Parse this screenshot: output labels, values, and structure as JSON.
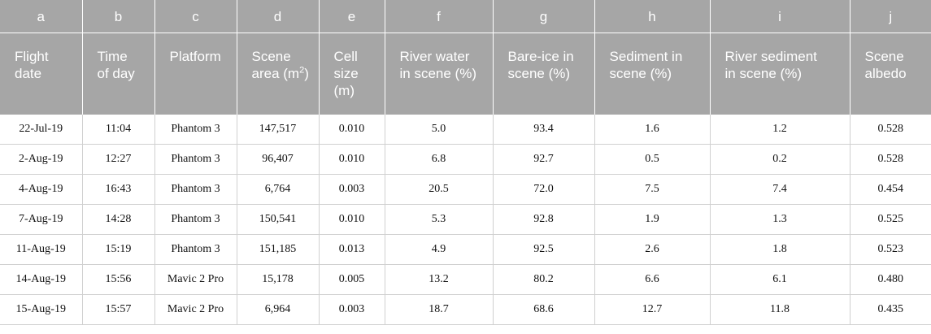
{
  "table": {
    "letters": [
      "a",
      "b",
      "c",
      "d",
      "e",
      "f",
      "g",
      "h",
      "i",
      "j"
    ],
    "headers": [
      [
        "Flight",
        "date"
      ],
      [
        "Time",
        "of day"
      ],
      [
        "Platform"
      ],
      [
        "Scene",
        "area (m",
        "2",
        ")"
      ],
      [
        "Cell",
        "size",
        "(m)"
      ],
      [
        "River water",
        "in scene (%)"
      ],
      [
        "Bare-ice in",
        "scene (%)"
      ],
      [
        "Sediment in",
        "scene (%)"
      ],
      [
        "River sediment",
        "in scene (%)"
      ],
      [
        "Scene",
        "albedo"
      ]
    ],
    "rows": [
      [
        "22-Jul-19",
        "11:04",
        "Phantom 3",
        "147,517",
        "0.010",
        "5.0",
        "93.4",
        "1.6",
        "1.2",
        "0.528"
      ],
      [
        "2-Aug-19",
        "12:27",
        "Phantom 3",
        "96,407",
        "0.010",
        "6.8",
        "92.7",
        "0.5",
        "0.2",
        "0.528"
      ],
      [
        "4-Aug-19",
        "16:43",
        "Phantom 3",
        "6,764",
        "0.003",
        "20.5",
        "72.0",
        "7.5",
        "7.4",
        "0.454"
      ],
      [
        "7-Aug-19",
        "14:28",
        "Phantom 3",
        "150,541",
        "0.010",
        "5.3",
        "92.8",
        "1.9",
        "1.3",
        "0.525"
      ],
      [
        "11-Aug-19",
        "15:19",
        "Phantom 3",
        "151,185",
        "0.013",
        "4.9",
        "92.5",
        "2.6",
        "1.8",
        "0.523"
      ],
      [
        "14-Aug-19",
        "15:56",
        "Mavic 2 Pro",
        "15,178",
        "0.005",
        "13.2",
        "80.2",
        "6.6",
        "6.1",
        "0.480"
      ],
      [
        "15-Aug-19",
        "15:57",
        "Mavic 2 Pro",
        "6,964",
        "0.003",
        "18.7",
        "68.6",
        "12.7",
        "11.8",
        "0.435"
      ]
    ]
  },
  "colors": {
    "header_background": "#a6a6a6",
    "header_text": "#ffffff",
    "grid_lines": "#d0d0d0"
  }
}
